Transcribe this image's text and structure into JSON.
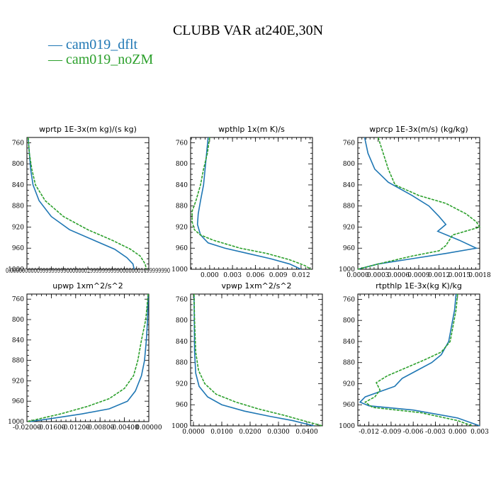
{
  "title": "CLUBB VAR at240E,30N",
  "legend": [
    {
      "name": "cam019_dflt",
      "marker": "—",
      "color": "#1f77b4"
    },
    {
      "name": "cam019_noZM",
      "marker": "—",
      "color": "#2ca02c"
    }
  ],
  "chart_data": [
    {
      "type": "line",
      "title": "wprtp  1E-3x(m kg)/(s kg)",
      "ylim": [
        1000,
        750
      ],
      "yticks": [
        760,
        800,
        840,
        880,
        920,
        960,
        1000
      ],
      "xlim": [
        0,
        1
      ],
      "xticks": [],
      "xtick_label_text": "0.000000000099999999900000002999999999900000001499999990",
      "series": [
        {
          "name": "cam019_dflt",
          "color": "#1f77b4",
          "style": "solid",
          "points": [
            [
              0.01,
              750
            ],
            [
              0.02,
              780
            ],
            [
              0.03,
              810
            ],
            [
              0.05,
              840
            ],
            [
              0.1,
              870
            ],
            [
              0.2,
              900
            ],
            [
              0.35,
              925
            ],
            [
              0.55,
              945
            ],
            [
              0.72,
              962
            ],
            [
              0.82,
              978
            ],
            [
              0.87,
              990
            ],
            [
              0.88,
              1000
            ]
          ]
        },
        {
          "name": "cam019_noZM",
          "color": "#2ca02c",
          "style": "dashed",
          "points": [
            [
              0.01,
              750
            ],
            [
              0.02,
              780
            ],
            [
              0.04,
              810
            ],
            [
              0.07,
              840
            ],
            [
              0.15,
              870
            ],
            [
              0.3,
              900
            ],
            [
              0.5,
              925
            ],
            [
              0.7,
              945
            ],
            [
              0.85,
              962
            ],
            [
              0.93,
              975
            ],
            [
              0.97,
              990
            ],
            [
              0.98,
              1000
            ]
          ]
        }
      ]
    },
    {
      "type": "line",
      "title": "wpthlp  1x(m K)/s",
      "ylim": [
        1000,
        750
      ],
      "yticks": [
        760,
        800,
        840,
        880,
        920,
        960,
        1000
      ],
      "xlim": [
        -0.0025,
        0.0135
      ],
      "xticks": [
        0.0,
        0.003,
        0.006,
        0.009,
        0.012
      ],
      "xtick_labels": [
        "0.000",
        "0.003",
        "0.006",
        "0.009",
        "0.012"
      ],
      "series": [
        {
          "name": "cam019_dflt",
          "color": "#1f77b4",
          "style": "solid",
          "points": [
            [
              -0.0002,
              750
            ],
            [
              -0.0004,
              780
            ],
            [
              -0.0006,
              810
            ],
            [
              -0.0008,
              840
            ],
            [
              -0.0012,
              870
            ],
            [
              -0.0015,
              895
            ],
            [
              -0.0016,
              915
            ],
            [
              -0.0012,
              935
            ],
            [
              -0.0002,
              950
            ],
            [
              0.002,
              960
            ],
            [
              0.005,
              970
            ],
            [
              0.008,
              980
            ],
            [
              0.0105,
              990
            ],
            [
              0.012,
              1000
            ]
          ]
        },
        {
          "name": "cam019_noZM",
          "color": "#2ca02c",
          "style": "dashed",
          "points": [
            [
              0.0,
              750
            ],
            [
              -0.0003,
              780
            ],
            [
              -0.0008,
              810
            ],
            [
              -0.0012,
              840
            ],
            [
              -0.0018,
              870
            ],
            [
              -0.0023,
              890
            ],
            [
              -0.0023,
              910
            ],
            [
              -0.002,
              925
            ],
            [
              -0.0012,
              935
            ],
            [
              0.0005,
              945
            ],
            [
              0.004,
              960
            ],
            [
              0.0075,
              970
            ],
            [
              0.0105,
              982
            ],
            [
              0.0125,
              993
            ],
            [
              0.0133,
              1000
            ]
          ]
        }
      ]
    },
    {
      "type": "line",
      "title": "wprcp  1E-3x(m/s) (kg/kg)",
      "ylim": [
        1000,
        750
      ],
      "yticks": [
        760,
        800,
        840,
        880,
        920,
        960,
        1000
      ],
      "xlim": [
        0.0,
        0.0018
      ],
      "xticks": [
        0.0,
        0.0003,
        0.0006,
        0.0009,
        0.0012,
        0.0015,
        0.0018
      ],
      "xtick_labels": [
        "0.0000",
        "0.0003",
        "0.0006",
        "0.0009",
        "0.0012",
        "0.0015",
        "0.0018"
      ],
      "series": [
        {
          "name": "cam019_dflt",
          "color": "#1f77b4",
          "style": "solid",
          "points": [
            [
              0.0001,
              750
            ],
            [
              0.00015,
              780
            ],
            [
              0.00025,
              810
            ],
            [
              0.00045,
              835
            ],
            [
              0.0008,
              860
            ],
            [
              0.00105,
              880
            ],
            [
              0.0012,
              900
            ],
            [
              0.0013,
              915
            ],
            [
              0.00118,
              928
            ],
            [
              0.0015,
              945
            ],
            [
              0.00175,
              960
            ],
            [
              0.0013,
              970
            ],
            [
              0.0008,
              980
            ],
            [
              0.0003,
              990
            ],
            [
              0.0,
              1000
            ]
          ]
        },
        {
          "name": "cam019_noZM",
          "color": "#2ca02c",
          "style": "dashed",
          "points": [
            [
              0.0003,
              750
            ],
            [
              0.00035,
              770
            ],
            [
              0.0004,
              790
            ],
            [
              0.00045,
              810
            ],
            [
              0.00055,
              840
            ],
            [
              0.0009,
              860
            ],
            [
              0.0013,
              875
            ],
            [
              0.0016,
              895
            ],
            [
              0.00175,
              910
            ],
            [
              0.0018,
              920
            ],
            [
              0.0014,
              935
            ],
            [
              0.0013,
              955
            ],
            [
              0.0012,
              965
            ],
            [
              0.0008,
              975
            ],
            [
              0.0003,
              990
            ],
            [
              0.0,
              1000
            ]
          ]
        }
      ]
    },
    {
      "type": "line",
      "title": "upwp  1xm^2/s^2",
      "ylim": [
        1000,
        750
      ],
      "yticks": [
        760,
        800,
        840,
        880,
        920,
        960,
        1000
      ],
      "xlim": [
        -0.02,
        0.0
      ],
      "xticks": [
        -0.02,
        -0.016,
        -0.012,
        -0.008,
        -0.004,
        0.0
      ],
      "xtick_labels": [
        "-0.02000",
        "-0.01600",
        "-0.01200",
        "-0.00800",
        "-0.00400",
        "0.00000"
      ],
      "series": [
        {
          "name": "cam019_dflt",
          "color": "#1f77b4",
          "style": "solid",
          "points": [
            [
              -0.0001,
              750
            ],
            [
              -0.0002,
              800
            ],
            [
              -0.0004,
              840
            ],
            [
              -0.0007,
              880
            ],
            [
              -0.0012,
              910
            ],
            [
              -0.0022,
              940
            ],
            [
              -0.0035,
              960
            ],
            [
              -0.0065,
              975
            ],
            [
              -0.011,
              985
            ],
            [
              -0.016,
              994
            ],
            [
              -0.0195,
              1000
            ]
          ]
        },
        {
          "name": "cam019_noZM",
          "color": "#2ca02c",
          "style": "dashed",
          "points": [
            [
              -0.0001,
              750
            ],
            [
              -0.0005,
              800
            ],
            [
              -0.0012,
              840
            ],
            [
              -0.0018,
              880
            ],
            [
              -0.0025,
              910
            ],
            [
              -0.004,
              935
            ],
            [
              -0.0065,
              955
            ],
            [
              -0.01,
              970
            ],
            [
              -0.0145,
              985
            ],
            [
              -0.0185,
              996
            ],
            [
              -0.02,
              1000
            ]
          ]
        }
      ]
    },
    {
      "type": "line",
      "title": "vpwp  1xm^2/s^2",
      "ylim": [
        1000,
        750
      ],
      "yticks": [
        760,
        800,
        840,
        880,
        920,
        960,
        1000
      ],
      "xlim": [
        -0.001,
        0.0455
      ],
      "xticks": [
        0.0,
        0.01,
        0.02,
        0.03,
        0.04
      ],
      "xtick_labels": [
        "0.0000",
        "0.0100",
        "0.0200",
        "0.0300",
        "0.0400"
      ],
      "series": [
        {
          "name": "cam019_dflt",
          "color": "#1f77b4",
          "style": "solid",
          "points": [
            [
              0.0002,
              750
            ],
            [
              0.0003,
              800
            ],
            [
              0.0004,
              860
            ],
            [
              0.0008,
              900
            ],
            [
              0.002,
              925
            ],
            [
              0.005,
              945
            ],
            [
              0.01,
              960
            ],
            [
              0.018,
              972
            ],
            [
              0.027,
              982
            ],
            [
              0.035,
              990
            ],
            [
              0.0425,
              1000
            ]
          ]
        },
        {
          "name": "cam019_noZM",
          "color": "#2ca02c",
          "style": "dashed",
          "points": [
            [
              0.0002,
              750
            ],
            [
              0.0004,
              800
            ],
            [
              0.0008,
              860
            ],
            [
              0.0018,
              895
            ],
            [
              0.004,
              920
            ],
            [
              0.008,
              940
            ],
            [
              0.015,
              955
            ],
            [
              0.023,
              968
            ],
            [
              0.032,
              980
            ],
            [
              0.04,
              992
            ],
            [
              0.0455,
              1000
            ]
          ]
        }
      ]
    },
    {
      "type": "line",
      "title": "rtpthlp  1E-3x(kg K)/kg",
      "ylim": [
        1000,
        750
      ],
      "yticks": [
        760,
        800,
        840,
        880,
        920,
        960,
        1000
      ],
      "xlim": [
        -0.0135,
        0.003
      ],
      "xticks": [
        -0.012,
        -0.009,
        -0.006,
        -0.003,
        0.0,
        0.003
      ],
      "xtick_labels": [
        "-0.012",
        "-0.009",
        "-0.006",
        "-0.003",
        "0.000",
        "0.003"
      ],
      "series": [
        {
          "name": "cam019_dflt",
          "color": "#1f77b4",
          "style": "solid",
          "points": [
            [
              -0.0002,
              750
            ],
            [
              -0.0004,
              780
            ],
            [
              -0.0008,
              810
            ],
            [
              -0.0012,
              840
            ],
            [
              -0.0022,
              865
            ],
            [
              -0.0035,
              880
            ],
            [
              -0.0055,
              895
            ],
            [
              -0.0075,
              910
            ],
            [
              -0.0085,
              925
            ],
            [
              -0.0105,
              935
            ],
            [
              -0.0125,
              945
            ],
            [
              -0.0132,
              955
            ],
            [
              -0.012,
              962
            ],
            [
              -0.006,
              970
            ],
            [
              0.0,
              985
            ],
            [
              0.003,
              1000
            ]
          ]
        },
        {
          "name": "cam019_noZM",
          "color": "#2ca02c",
          "style": "dashed",
          "points": [
            [
              0.0,
              750
            ],
            [
              -0.0002,
              780
            ],
            [
              -0.0006,
              810
            ],
            [
              -0.001,
              840
            ],
            [
              -0.0022,
              860
            ],
            [
              -0.0045,
              875
            ],
            [
              -0.007,
              890
            ],
            [
              -0.0095,
              905
            ],
            [
              -0.011,
              918
            ],
            [
              -0.0105,
              932
            ],
            [
              -0.0112,
              945
            ],
            [
              -0.0125,
              955
            ],
            [
              -0.012,
              960
            ],
            [
              -0.0115,
              965
            ],
            [
              -0.005,
              975
            ],
            [
              0.0,
              990
            ],
            [
              0.002,
              1000
            ]
          ]
        }
      ]
    }
  ]
}
